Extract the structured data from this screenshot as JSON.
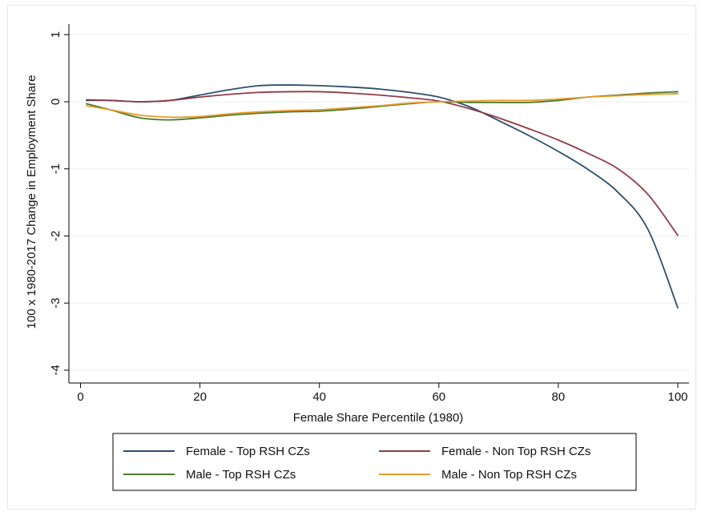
{
  "chart_data": {
    "type": "line",
    "xlabel": "Female Share Percentile (1980)",
    "ylabel": "100 x 1980-2017 Change in Employment Share",
    "xlim": [
      0,
      100
    ],
    "ylim": [
      -4.3,
      1.2
    ],
    "xticks": [
      0,
      20,
      40,
      60,
      80,
      100
    ],
    "yticks": [
      1,
      0,
      -1,
      -2,
      -3,
      -4
    ],
    "grid": "horizontal",
    "legend_position": "bottom",
    "legend_columns": 2,
    "series": [
      {
        "name": "Female - Top RSH CZs",
        "color": "#2b4e6e",
        "x": [
          1,
          5,
          10,
          15,
          20,
          25,
          30,
          35,
          40,
          45,
          50,
          55,
          60,
          65,
          70,
          75,
          80,
          85,
          90,
          95,
          100
        ],
        "y": [
          0.02,
          0.02,
          0.0,
          0.02,
          0.1,
          0.18,
          0.24,
          0.25,
          0.24,
          0.22,
          0.19,
          0.14,
          0.07,
          -0.07,
          -0.28,
          -0.5,
          -0.74,
          -1.01,
          -1.35,
          -1.9,
          -3.07
        ]
      },
      {
        "name": "Female - Non Top RSH CZs",
        "color": "#923a47",
        "x": [
          1,
          5,
          10,
          15,
          20,
          25,
          30,
          35,
          40,
          45,
          50,
          55,
          60,
          65,
          70,
          75,
          80,
          85,
          90,
          95,
          100
        ],
        "y": [
          0.03,
          0.02,
          0.0,
          0.02,
          0.07,
          0.11,
          0.14,
          0.15,
          0.15,
          0.13,
          0.1,
          0.06,
          0.01,
          -0.1,
          -0.24,
          -0.4,
          -0.57,
          -0.77,
          -1.0,
          -1.38,
          -1.99
        ]
      },
      {
        "name": "Male - Top RSH CZs",
        "color": "#4a7a2a",
        "x": [
          1,
          5,
          10,
          15,
          20,
          25,
          30,
          35,
          40,
          45,
          50,
          55,
          60,
          65,
          70,
          75,
          80,
          85,
          90,
          95,
          100
        ],
        "y": [
          -0.03,
          -0.12,
          -0.24,
          -0.27,
          -0.24,
          -0.2,
          -0.17,
          -0.15,
          -0.14,
          -0.11,
          -0.07,
          -0.03,
          0.0,
          -0.01,
          -0.01,
          -0.01,
          0.02,
          0.07,
          0.1,
          0.13,
          0.15
        ]
      },
      {
        "name": "Male - Non Top RSH CZs",
        "color": "#e89a2a",
        "x": [
          1,
          5,
          10,
          15,
          20,
          25,
          30,
          35,
          40,
          45,
          50,
          55,
          60,
          65,
          70,
          75,
          80,
          85,
          90,
          95,
          100
        ],
        "y": [
          -0.06,
          -0.12,
          -0.2,
          -0.23,
          -0.22,
          -0.18,
          -0.15,
          -0.13,
          -0.12,
          -0.09,
          -0.06,
          -0.02,
          0.0,
          0.01,
          0.02,
          0.02,
          0.04,
          0.07,
          0.09,
          0.11,
          0.12
        ]
      }
    ]
  }
}
